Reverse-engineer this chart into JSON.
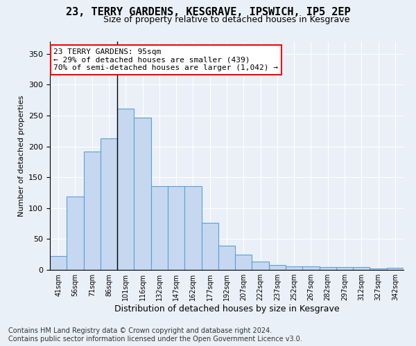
{
  "title": "23, TERRY GARDENS, KESGRAVE, IPSWICH, IP5 2EP",
  "subtitle": "Size of property relative to detached houses in Kesgrave",
  "xlabel": "Distribution of detached houses by size in Kesgrave",
  "ylabel": "Number of detached properties",
  "categories": [
    "41sqm",
    "56sqm",
    "71sqm",
    "86sqm",
    "101sqm",
    "116sqm",
    "132sqm",
    "147sqm",
    "162sqm",
    "177sqm",
    "192sqm",
    "207sqm",
    "222sqm",
    "237sqm",
    "252sqm",
    "267sqm",
    "282sqm",
    "297sqm",
    "312sqm",
    "327sqm",
    "342sqm"
  ],
  "values": [
    22,
    119,
    192,
    213,
    261,
    247,
    136,
    136,
    136,
    76,
    39,
    25,
    14,
    8,
    6,
    6,
    4,
    4,
    4,
    2,
    3
  ],
  "bar_color": "#c5d8f0",
  "bar_edge_color": "#5a9fd4",
  "annotation_box_text": "23 TERRY GARDENS: 95sqm\n← 29% of detached houses are smaller (439)\n70% of semi-detached houses are larger (1,042) →",
  "annotation_box_color": "white",
  "annotation_box_edge_color": "red",
  "property_line_index": 3.5,
  "ylim": [
    0,
    370
  ],
  "yticks": [
    0,
    50,
    100,
    150,
    200,
    250,
    300,
    350
  ],
  "footer": "Contains HM Land Registry data © Crown copyright and database right 2024.\nContains public sector information licensed under the Open Government Licence v3.0.",
  "background_color": "#eaf0f8",
  "plot_bg_color": "#eaf0f8",
  "title_fontsize": 11,
  "subtitle_fontsize": 9,
  "annotation_fontsize": 8,
  "footer_fontsize": 7
}
